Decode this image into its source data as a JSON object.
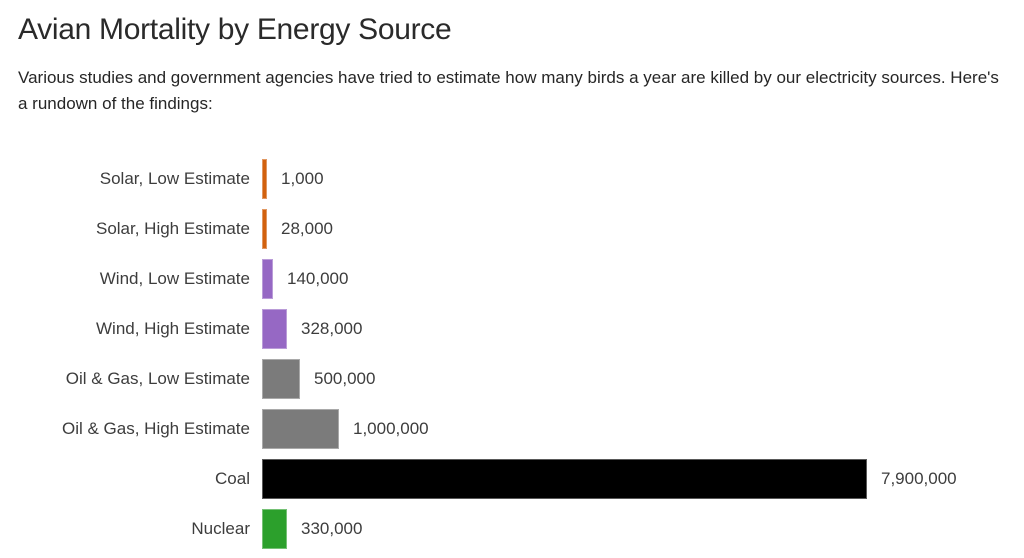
{
  "chart_data": {
    "type": "bar",
    "orientation": "horizontal",
    "title": "Avian Mortality by Energy Source",
    "subtitle": "Various studies and government agencies have tried to estimate how many birds a year are killed by our electricity sources. Here's a rundown of the findings:",
    "categories": [
      "Solar, Low Estimate",
      "Solar, High Estimate",
      "Wind, Low Estimate",
      "Wind, High Estimate",
      "Oil & Gas, Low Estimate",
      "Oil & Gas, High Estimate",
      "Coal",
      "Nuclear"
    ],
    "values": [
      1000,
      28000,
      140000,
      328000,
      500000,
      1000000,
      7900000,
      330000
    ],
    "value_labels": [
      "1,000",
      "28,000",
      "140,000",
      "328,000",
      "500,000",
      "1,000,000",
      "7,900,000",
      "330,000"
    ],
    "bar_colors": [
      "#d2610e",
      "#d2610e",
      "#9668c4",
      "#9668c4",
      "#7b7b7b",
      "#7b7b7b",
      "#000000",
      "#2ca02c"
    ],
    "source_colors": {
      "solar": "#d2610e",
      "wind": "#9668c4",
      "oil_gas": "#7b7b7b",
      "coal": "#000000",
      "nuclear": "#2ca02c"
    },
    "xlabel": "",
    "ylabel": "",
    "xlim": [
      0,
      7900000
    ],
    "grid": false,
    "legend_position": "none",
    "value_label_position": "right-of-bar"
  }
}
